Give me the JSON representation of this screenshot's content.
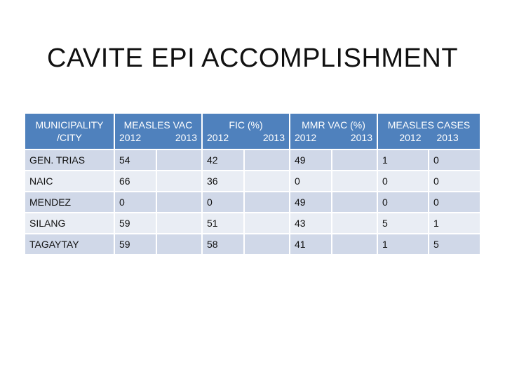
{
  "title": "CAVITE EPI ACCOMPLISHMENT",
  "table": {
    "headers": {
      "municipality": "MUNICIPALITY /CITY",
      "measles_vac": {
        "label": "MEASLES VAC",
        "year1": "2012",
        "year2": "2013"
      },
      "fic": {
        "label": "FIC (%)",
        "year1": "2012",
        "year2": "2013"
      },
      "mmr_vac": {
        "label": "MMR VAC (%)",
        "year1": "2012",
        "year2": "2013"
      },
      "measles_cases": {
        "label": "MEASLES CASES",
        "year1": "2012",
        "year2": "2013"
      }
    },
    "rows": [
      {
        "name": "GEN. TRIAS",
        "mv2012": "54",
        "mv2013": "",
        "fic2012": "42",
        "fic2013": "",
        "mmr2012": "49",
        "mmr2013": "",
        "mc2012": "1",
        "mc2013": "0"
      },
      {
        "name": "NAIC",
        "mv2012": "66",
        "mv2013": "",
        "fic2012": "36",
        "fic2013": "",
        "mmr2012": "0",
        "mmr2013": "",
        "mc2012": "0",
        "mc2013": "0"
      },
      {
        "name": "MENDEZ",
        "mv2012": "0",
        "mv2013": "",
        "fic2012": "0",
        "fic2013": "",
        "mmr2012": "49",
        "mmr2013": "",
        "mc2012": "0",
        "mc2013": "0"
      },
      {
        "name": "SILANG",
        "mv2012": "59",
        "mv2013": "",
        "fic2012": "51",
        "fic2013": "",
        "mmr2012": "43",
        "mmr2013": "",
        "mc2012": "5",
        "mc2013": "1"
      },
      {
        "name": "TAGAYTAY",
        "mv2012": "59",
        "mv2013": "",
        "fic2012": "58",
        "fic2013": "",
        "mmr2012": "41",
        "mmr2013": "",
        "mc2012": "1",
        "mc2013": "5"
      }
    ]
  },
  "colors": {
    "header_bg": "#4f81bd",
    "band_a": "#d0d8e8",
    "band_b": "#e9edf4"
  }
}
